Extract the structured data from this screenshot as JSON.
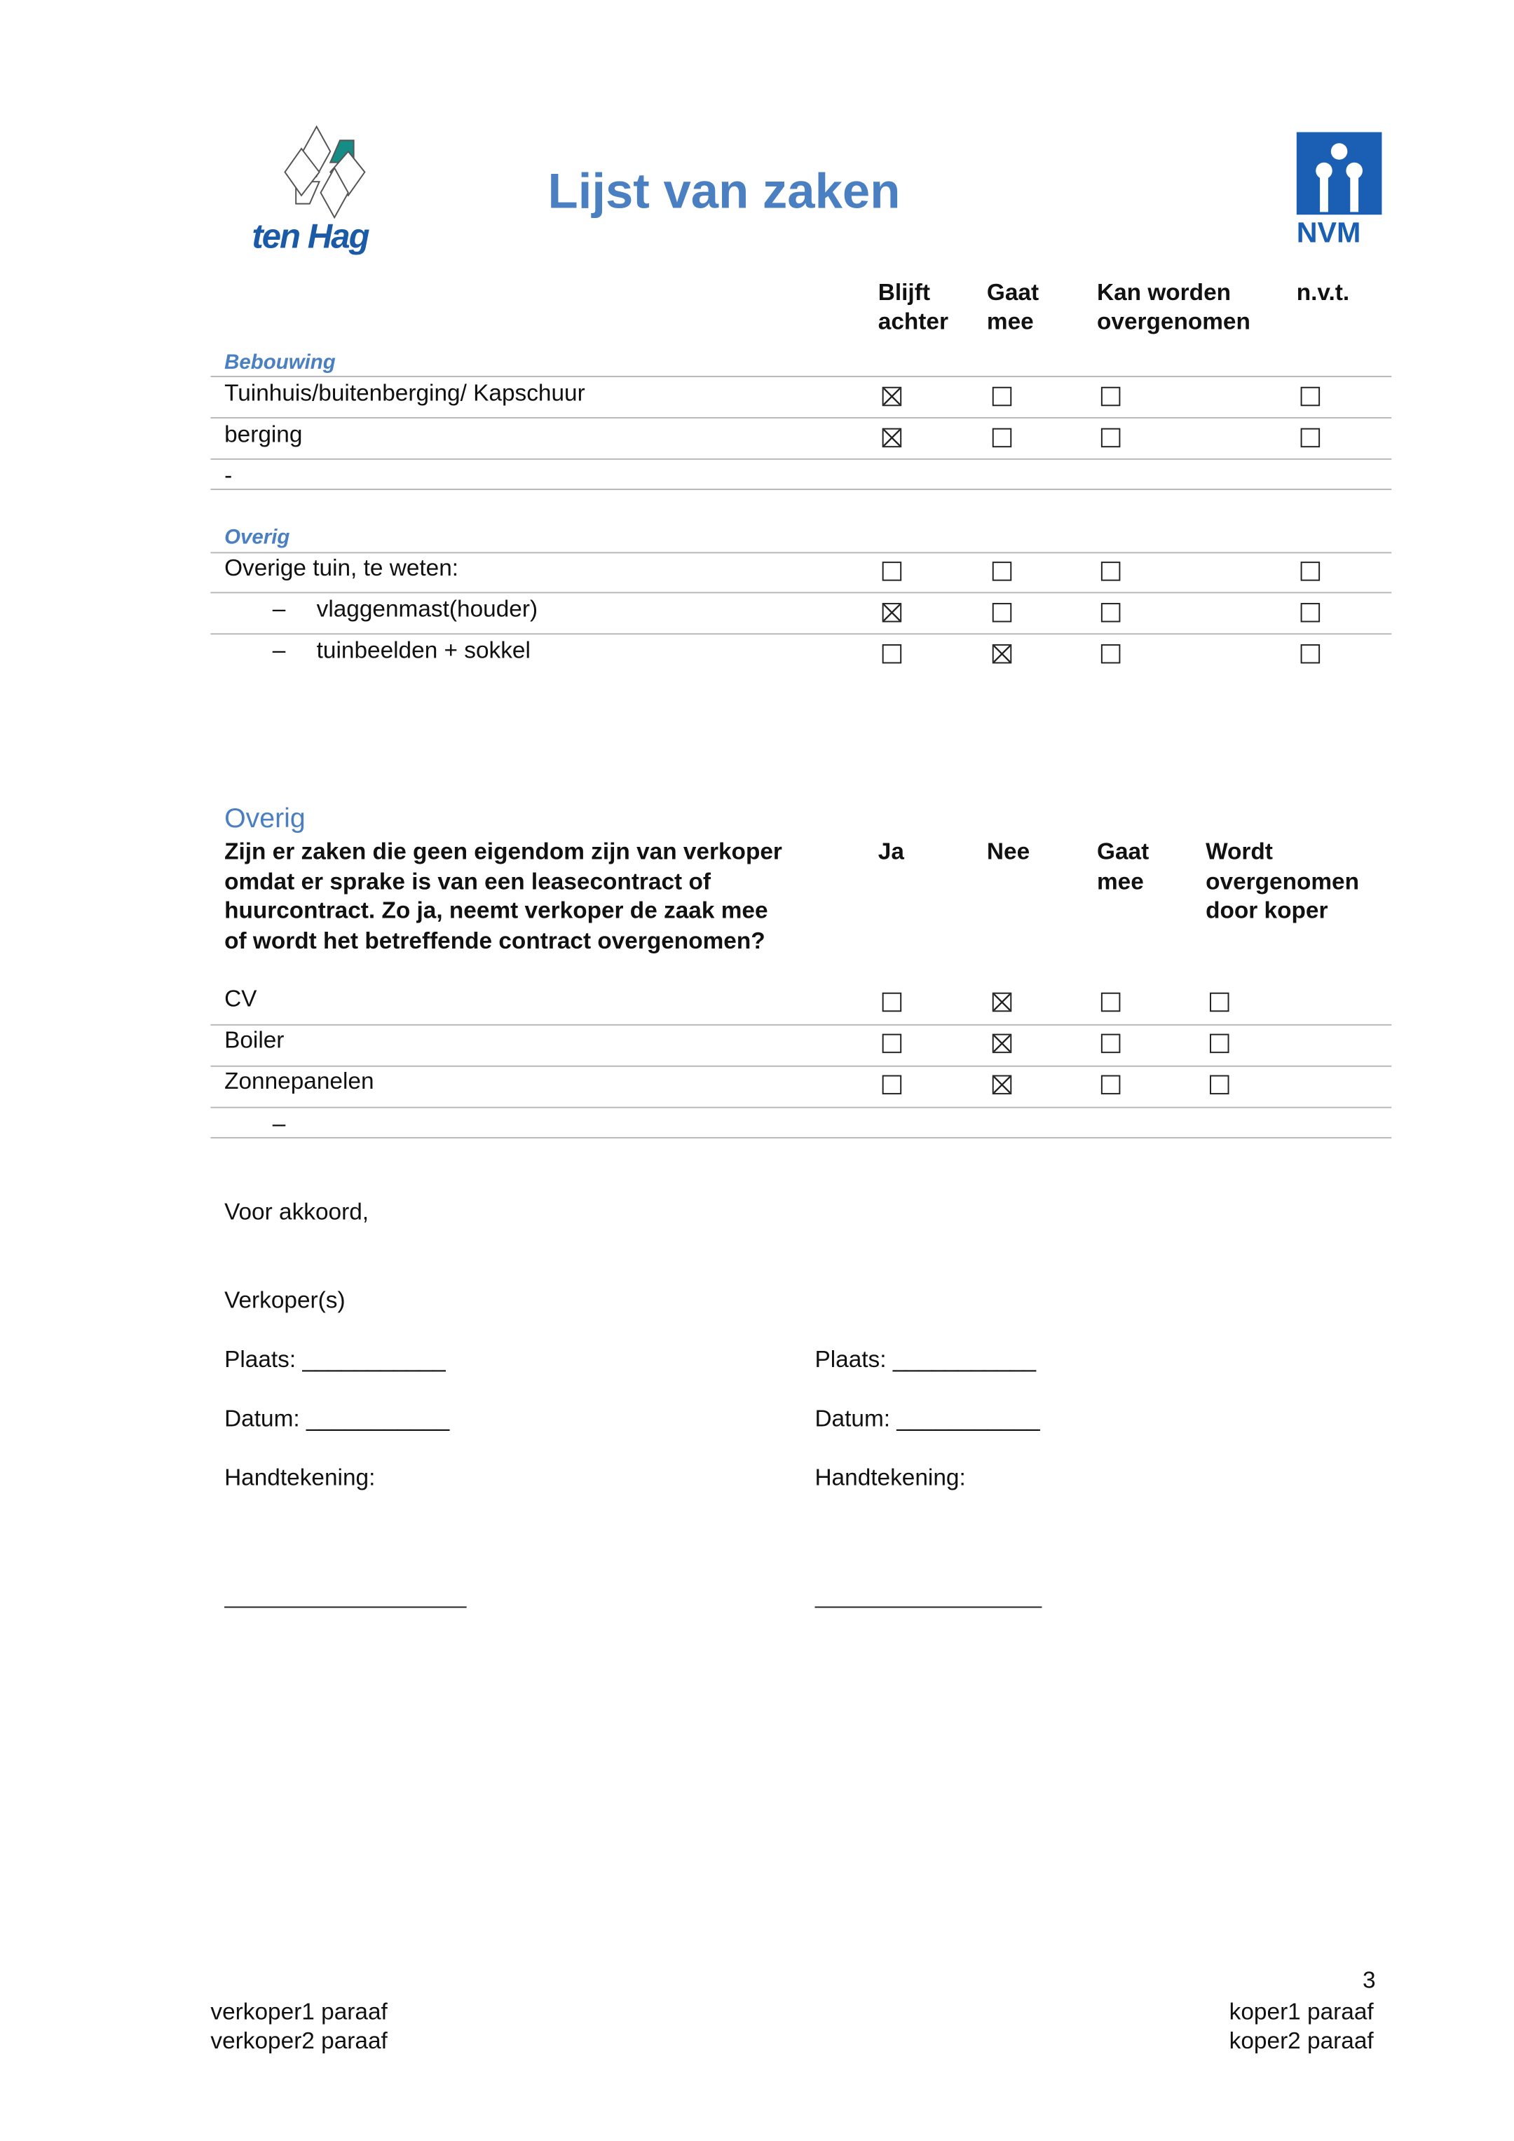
{
  "header": {
    "title": "Lijst van zaken",
    "logo_left": "ten Hag",
    "logo_right": "NVM",
    "title_color": "#4a7fc1",
    "logo_left_text_color": "#1a5aa6",
    "logo_left_accent": "#168c86",
    "logo_right_color": "#1a5fb4"
  },
  "table1": {
    "columns": [
      "Blijft achter",
      "Gaat mee",
      "Kan worden overgenomen",
      "n.v.t."
    ],
    "col_lines": [
      [
        "Blijft",
        "achter"
      ],
      [
        "Gaat",
        "mee"
      ],
      [
        "Kan worden",
        "overgenomen"
      ],
      [
        "n.v.t.",
        ""
      ]
    ],
    "sections": [
      {
        "title": "Bebouwing",
        "rows": [
          {
            "label": "Tuinhuis/buitenberging/ Kapschuur",
            "checks": [
              true,
              false,
              false,
              false
            ]
          },
          {
            "label": "berging",
            "checks": [
              true,
              false,
              false,
              false
            ]
          },
          {
            "label": "-",
            "checks": null
          }
        ]
      },
      {
        "title": "Overig",
        "rows": [
          {
            "label": "Overige tuin, te weten:",
            "checks": [
              false,
              false,
              false,
              false
            ]
          },
          {
            "bullet": "–",
            "label": "vlaggenmast(houder)",
            "checks": [
              true,
              false,
              false,
              false
            ]
          },
          {
            "bullet": "–",
            "label": "tuinbeelden + sokkel",
            "checks": [
              false,
              true,
              false,
              false
            ]
          }
        ]
      }
    ]
  },
  "table2": {
    "title": "Overig",
    "question": [
      "Zijn er zaken die geen eigendom zijn van verkoper",
      "omdat er sprake is van een leasecontract of",
      "huurcontract. Zo ja, neemt verkoper de zaak mee",
      "of wordt het betreffende contract overgenomen?"
    ],
    "col_lines": [
      [
        "Ja"
      ],
      [
        "Nee"
      ],
      [
        "Gaat",
        "mee"
      ],
      [
        "Wordt",
        "overgenomen",
        "door koper"
      ]
    ],
    "rows": [
      {
        "label": "CV",
        "checks": [
          false,
          true,
          false,
          false
        ]
      },
      {
        "label": "Boiler",
        "checks": [
          false,
          true,
          false,
          false
        ]
      },
      {
        "label": "Zonnepanelen",
        "checks": [
          false,
          true,
          false,
          false
        ]
      },
      {
        "label": "–",
        "checks": null
      }
    ]
  },
  "signature": {
    "agree": "Voor akkoord,",
    "sellers": "Verkoper(s)",
    "place": "Plaats:",
    "date": "Datum:",
    "signature": "Handtekening:",
    "blank": "___________"
  },
  "footer": {
    "page": "3",
    "left": [
      "verkoper1 paraaf",
      "verkoper2 paraaf"
    ],
    "right": [
      "koper1 paraaf",
      "koper2 paraaf"
    ]
  }
}
